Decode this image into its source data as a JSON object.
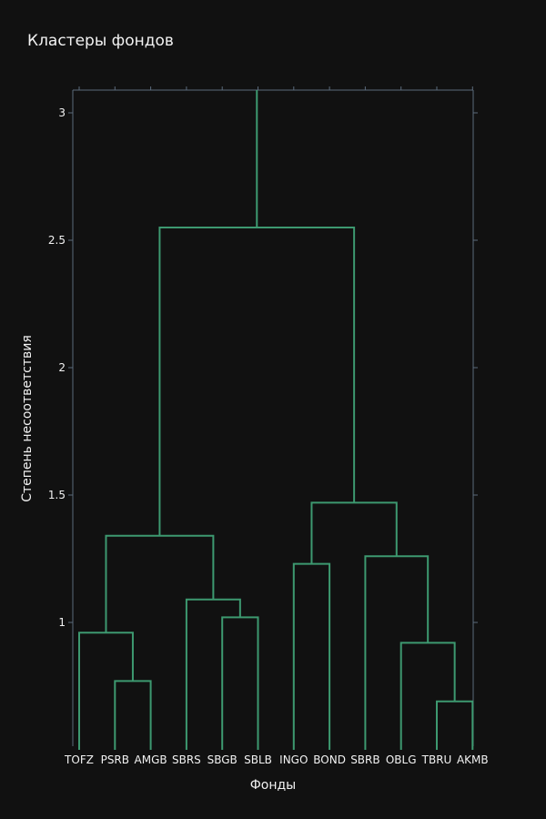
{
  "chart_data": {
    "type": "dendrogram",
    "title": "Кластеры фондов",
    "xlabel": "Фонды",
    "ylabel": "Степень несоответствия",
    "leaves": [
      "TOFZ",
      "PSRB",
      "AMGB",
      "SBRS",
      "SBGB",
      "SBLB",
      "INGO",
      "BOND",
      "SBRB",
      "OBLG",
      "TBRU",
      "AKMB"
    ],
    "yticks": [
      1,
      1.5,
      2,
      2.5,
      3
    ],
    "ytick_labels": [
      "1",
      "1.5",
      "2",
      "2.5",
      "3"
    ],
    "ylim": [
      0.5,
      3.16
    ],
    "link_color": "#3d9970",
    "merges": [
      {
        "left": "PSRB",
        "right": "AMGB",
        "height": 0.77
      },
      {
        "left": "TBRU",
        "right": "AKMB",
        "height": 0.69
      },
      {
        "left": "TOFZ",
        "right": "PSRB+AMGB",
        "height": 0.96
      },
      {
        "left": "SBGB",
        "right": "SBLB",
        "height": 1.02
      },
      {
        "left": "SBRS",
        "right": "SBGB+SBLB",
        "height": 1.09
      },
      {
        "left": "OBLG",
        "right": "TBRU+AKMB",
        "height": 0.92
      },
      {
        "left": "INGO",
        "right": "BOND",
        "height": 1.23
      },
      {
        "left": "SBRB",
        "right": "OBLG+TBRU+AKMB",
        "height": 1.26
      },
      {
        "left": "TOFZ+PSRB+AMGB",
        "right": "SBRS+SBGB+SBLB",
        "height": 1.34
      },
      {
        "left": "INGO+BOND",
        "right": "SBRB+OBLG+TBRU+AKMB",
        "height": 1.47
      },
      {
        "left": "TOFZ..SBLB",
        "right": "INGO..AKMB",
        "height": 2.55
      },
      {
        "left": "root",
        "right": "",
        "height": 3.16
      }
    ]
  }
}
